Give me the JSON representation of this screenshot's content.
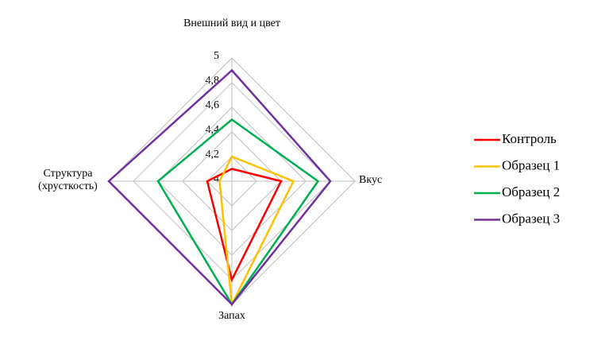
{
  "chart_data": {
    "type": "radar",
    "categories": [
      "Внешний вид и цвет",
      "Вкус",
      "Запах",
      "Структура (хрусткость)"
    ],
    "ylim": [
      4,
      5
    ],
    "yticks": [
      4,
      {
        "value": 4.2,
        "label": "4,2"
      },
      {
        "value": 4.4,
        "label": "4,4"
      },
      {
        "value": 4.6,
        "label": "4,6"
      },
      {
        "value": 4.8,
        "label": "4,8"
      },
      5
    ],
    "grid": true,
    "legend": "right",
    "series": [
      {
        "name": "Контроль",
        "color": "#ff0000",
        "values": [
          4.1,
          4.4,
          4.8,
          4.2
        ]
      },
      {
        "name": "Образец 1",
        "color": "#ffc000",
        "values": [
          4.2,
          4.5,
          5,
          4.1
        ]
      },
      {
        "name": "Образец 2",
        "color": "#00b050",
        "values": [
          4.5,
          4.7,
          5,
          4.6
        ]
      },
      {
        "name": "Образец 3",
        "color": "#7030a0",
        "values": [
          4.9,
          4.8,
          5,
          5
        ]
      }
    ]
  }
}
